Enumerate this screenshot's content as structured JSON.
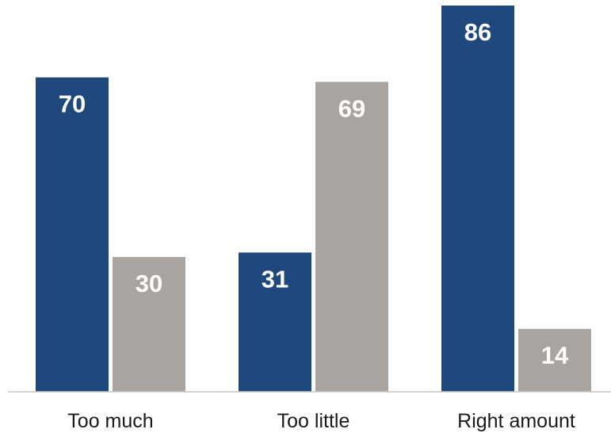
{
  "chart_data": {
    "type": "bar",
    "categories": [
      "Too much",
      "Too little",
      "Right amount"
    ],
    "series": [
      {
        "values": [
          70,
          31,
          86
        ],
        "color": "#1f497d"
      },
      {
        "values": [
          30,
          69,
          14
        ],
        "color": "#a9a49f"
      }
    ],
    "ylim": [
      0,
      86
    ],
    "grid": false,
    "legend": "none",
    "axis_color": "#c8c8c8"
  }
}
